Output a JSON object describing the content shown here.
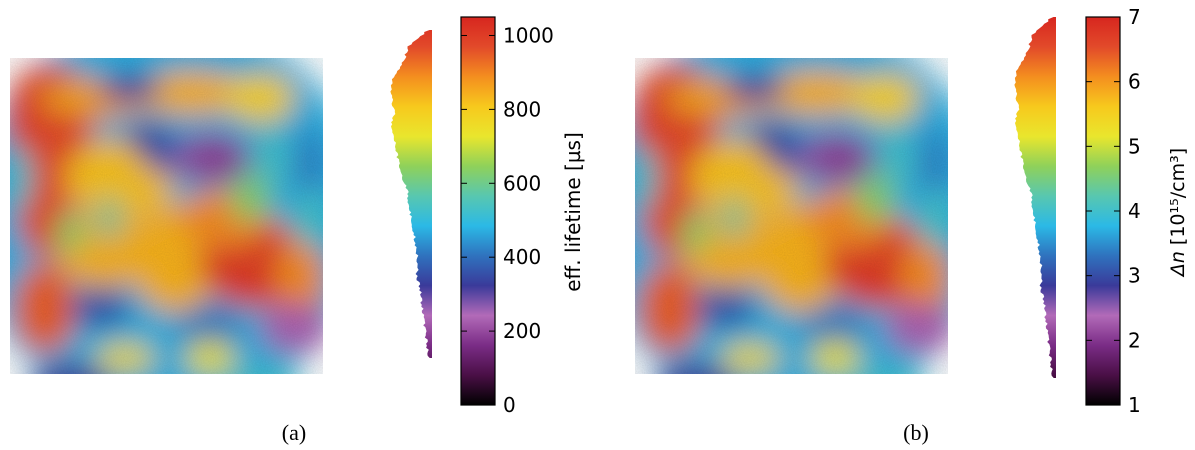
{
  "colors": {
    "colormap": [
      "#000000",
      "#4a0f46",
      "#7a2c86",
      "#b26ab8",
      "#3a3a9a",
      "#2f72be",
      "#2bb9e6",
      "#58c7b0",
      "#8fd15a",
      "#e9e62d",
      "#f7c91d",
      "#f48e1f",
      "#e24a2a",
      "#d7261f"
    ],
    "map_border": "#2a5fb5"
  },
  "panels": [
    {
      "caption": "(a)",
      "colorbar_label": "eff. lifetime [µs]",
      "ticks": [
        "0",
        "200",
        "400",
        "600",
        "800",
        "1000"
      ]
    },
    {
      "caption": "(b)",
      "colorbar_label_italic": "Δn",
      "colorbar_label": " [10¹⁵/cm³]",
      "ticks": [
        "1",
        "2",
        "3",
        "4",
        "5",
        "6",
        "7"
      ]
    }
  ],
  "chart_data": [
    {
      "type": "heatmap",
      "title": "",
      "colorbar_label": "eff. lifetime [µs]",
      "colorbar_range": [
        0,
        1050
      ],
      "colorbar_ticks": [
        0,
        200,
        400,
        600,
        800,
        1000
      ],
      "histogram_range": [
        180,
        1050
      ]
    },
    {
      "type": "heatmap",
      "title": "",
      "colorbar_label": "Δn [10¹⁵/cm³]",
      "colorbar_range": [
        1,
        7
      ],
      "colorbar_ticks": [
        1,
        2,
        3,
        4,
        5,
        6,
        7
      ],
      "histogram_range": [
        1.5,
        7
      ]
    }
  ]
}
